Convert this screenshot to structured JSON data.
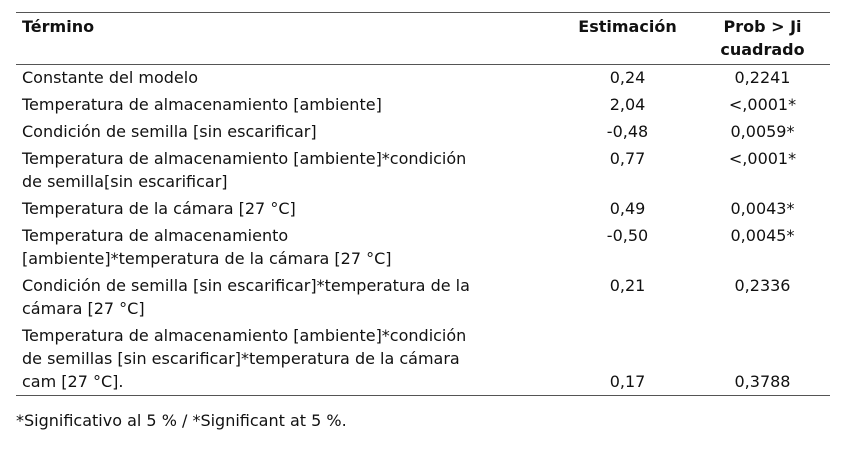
{
  "table": {
    "headers": [
      [
        "Término"
      ],
      [
        "Estimación"
      ],
      [
        "Prob > Ji",
        "cuadrado"
      ]
    ],
    "rows": [
      [
        [
          "Constante del modelo"
        ],
        "0,24",
        "0,2241"
      ],
      [
        [
          "Temperatura de almacenamiento [ambiente]"
        ],
        "2,04",
        "<,0001*"
      ],
      [
        [
          "Condición de semilla [sin escarificar]"
        ],
        "-0,48",
        "0,0059*"
      ],
      [
        [
          "Temperatura de almacenamiento [ambiente]*condición",
          "de semilla[sin escarificar]"
        ],
        "0,77",
        "<,0001*"
      ],
      [
        [
          "Temperatura de la cámara [27 °C]"
        ],
        "0,49",
        "0,0043*"
      ],
      [
        [
          "Temperatura de almacenamiento",
          "[ambiente]*temperatura de la cámara [27 °C]"
        ],
        "-0,50",
        "0,0045*"
      ],
      [
        [
          "Condición de semilla [sin escarificar]*temperatura de la",
          "cámara [27 °C]"
        ],
        "0,21",
        "0,2336"
      ],
      [
        [
          "Temperatura de almacenamiento [ambiente]*condición",
          "de semillas [sin escarificar]*temperatura de la cámara",
          "cam [27 °C]."
        ],
        "0,17",
        "0,3788"
      ]
    ]
  },
  "footnote": "*Significativo al 5 % / *Significant at 5 %."
}
